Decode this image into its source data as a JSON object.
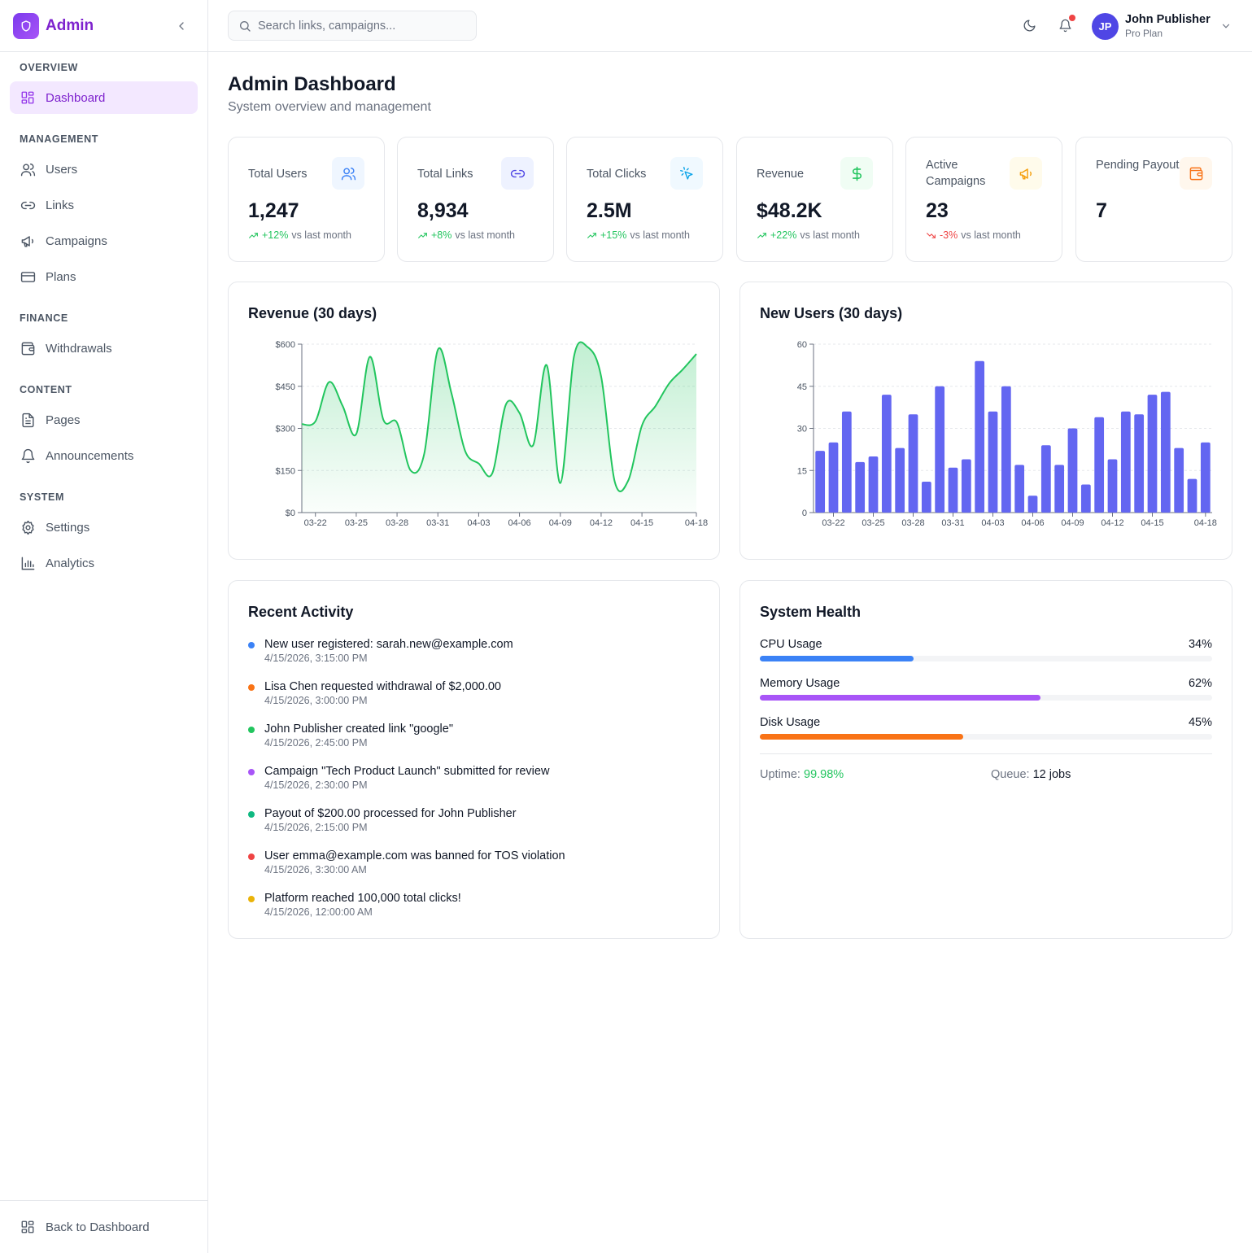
{
  "sidebar": {
    "brand": "Admin",
    "sections": [
      {
        "label": "OVERVIEW",
        "items": [
          {
            "label": "Dashboard",
            "icon": "dashboard-icon"
          }
        ]
      },
      {
        "label": "MANAGEMENT",
        "items": [
          {
            "label": "Users",
            "icon": "users-icon"
          },
          {
            "label": "Links",
            "icon": "link-icon"
          },
          {
            "label": "Campaigns",
            "icon": "megaphone-icon"
          },
          {
            "label": "Plans",
            "icon": "credit-card-icon"
          }
        ]
      },
      {
        "label": "FINANCE",
        "items": [
          {
            "label": "Withdrawals",
            "icon": "wallet-icon"
          }
        ]
      },
      {
        "label": "CONTENT",
        "items": [
          {
            "label": "Pages",
            "icon": "file-icon"
          },
          {
            "label": "Announcements",
            "icon": "bell-icon"
          }
        ]
      },
      {
        "label": "SYSTEM",
        "items": [
          {
            "label": "Settings",
            "icon": "gear-icon"
          },
          {
            "label": "Analytics",
            "icon": "bar-chart-icon"
          }
        ]
      }
    ],
    "footer_label": "Back to Dashboard"
  },
  "header": {
    "search_placeholder": "Search links, campaigns...",
    "user_initials": "JP",
    "user_name": "John Publisher",
    "user_plan": "Pro Plan"
  },
  "page": {
    "title": "Admin Dashboard",
    "subtitle": "System overview and management"
  },
  "stats": [
    {
      "label": "Total Users",
      "value": "1,247",
      "change": "+12%",
      "trend": "up",
      "suffix": "vs last month",
      "icon": "users-icon",
      "color": "#3b82f6"
    },
    {
      "label": "Total Links",
      "value": "8,934",
      "change": "+8%",
      "trend": "up",
      "suffix": "vs last month",
      "icon": "link-icon",
      "color": "#4f46e5"
    },
    {
      "label": "Total Clicks",
      "value": "2.5M",
      "change": "+15%",
      "trend": "up",
      "suffix": "vs last month",
      "icon": "cursor-click-icon",
      "color": "#0ea5e9"
    },
    {
      "label": "Revenue",
      "value": "$48.2K",
      "change": "+22%",
      "trend": "up",
      "suffix": "vs last month",
      "icon": "dollar-icon",
      "color": "#22c55e"
    },
    {
      "label": "Active Campaigns",
      "value": "23",
      "change": "-3%",
      "trend": "down",
      "suffix": "vs last month",
      "icon": "megaphone-icon",
      "color": "#f59e0b"
    },
    {
      "label": "Pending Payouts",
      "value": "7",
      "change": "",
      "trend": "",
      "suffix": "",
      "icon": "wallet-icon",
      "color": "#f97316"
    }
  ],
  "charts": {
    "revenue_title": "Revenue (30 days)",
    "users_title": "New Users (30 days)"
  },
  "chart_data": [
    {
      "type": "area",
      "title": "Revenue (30 days)",
      "x_ticks": [
        "03-22",
        "03-25",
        "03-28",
        "03-31",
        "04-03",
        "04-06",
        "04-09",
        "04-12",
        "04-15",
        "04-18"
      ],
      "y_ticks": [
        "$0",
        "$150",
        "$300",
        "$450",
        "$600"
      ],
      "ylim": [
        0,
        600
      ],
      "color": "#22c55e",
      "values": [
        315,
        325,
        465,
        380,
        280,
        555,
        330,
        320,
        150,
        210,
        580,
        425,
        220,
        175,
        140,
        385,
        355,
        240,
        525,
        105,
        555,
        590,
        485,
        110,
        115,
        310,
        380,
        460,
        510,
        565
      ]
    },
    {
      "type": "bar",
      "title": "New Users (30 days)",
      "x_ticks": [
        "03-22",
        "03-25",
        "03-28",
        "03-31",
        "04-03",
        "04-06",
        "04-09",
        "04-12",
        "04-15",
        "04-18"
      ],
      "y_ticks": [
        "0",
        "15",
        "30",
        "45",
        "60"
      ],
      "ylim": [
        0,
        60
      ],
      "color": "#6366f1",
      "values": [
        22,
        25,
        36,
        18,
        20,
        42,
        23,
        35,
        11,
        45,
        16,
        19,
        54,
        36,
        45,
        17,
        6,
        24,
        17,
        30,
        10,
        34,
        19,
        36,
        35,
        42,
        43,
        23,
        12,
        25
      ]
    }
  ],
  "activity": {
    "title": "Recent Activity",
    "items": [
      {
        "text": "New user registered: sarah.new@example.com",
        "time": "4/15/2026, 3:15:00 PM",
        "color": "#3b82f6"
      },
      {
        "text": "Lisa Chen requested withdrawal of $2,000.00",
        "time": "4/15/2026, 3:00:00 PM",
        "color": "#f97316"
      },
      {
        "text": "John Publisher created link \"google\"",
        "time": "4/15/2026, 2:45:00 PM",
        "color": "#22c55e"
      },
      {
        "text": "Campaign \"Tech Product Launch\" submitted for review",
        "time": "4/15/2026, 2:30:00 PM",
        "color": "#a855f7"
      },
      {
        "text": "Payout of $200.00 processed for John Publisher",
        "time": "4/15/2026, 2:15:00 PM",
        "color": "#10b981"
      },
      {
        "text": "User emma@example.com was banned for TOS violation",
        "time": "4/15/2026, 3:30:00 AM",
        "color": "#ef4444"
      },
      {
        "text": "Platform reached 100,000 total clicks!",
        "time": "4/15/2026, 12:00:00 AM",
        "color": "#eab308"
      }
    ]
  },
  "health": {
    "title": "System Health",
    "metrics": [
      {
        "label": "CPU Usage",
        "value": "34%",
        "fraction": 0.34,
        "color": "#3b82f6"
      },
      {
        "label": "Memory Usage",
        "value": "62%",
        "fraction": 0.62,
        "color": "#a855f7"
      },
      {
        "label": "Disk Usage",
        "value": "45%",
        "fraction": 0.45,
        "color": "#f97316"
      }
    ],
    "uptime_label": "Uptime:",
    "uptime_value": "99.98%",
    "queue_label": "Queue:",
    "queue_value": "12 jobs"
  }
}
